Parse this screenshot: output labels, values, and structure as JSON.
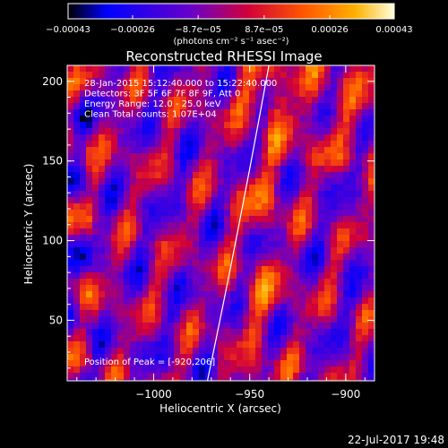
{
  "chart_data": {
    "type": "heatmap",
    "title": "Reconstructed RHESSI Image",
    "xlabel": "Heliocentric X (arcsec)",
    "ylabel": "Heliocentric Y (arcsec)",
    "xlim": [
      -1045,
      -885
    ],
    "ylim": [
      12,
      210
    ],
    "xticks": [
      -1000,
      -950,
      -900
    ],
    "xtick_labels": [
      "−1000",
      "−950",
      "−900"
    ],
    "yticks": [
      50,
      100,
      150,
      200
    ],
    "ytick_labels": [
      "50",
      "100",
      "150",
      "200"
    ],
    "colorbar": {
      "min": -0.00043,
      "max": 0.00043,
      "ticks": [
        -0.00043,
        -0.00026,
        -8.7e-05,
        8.7e-05,
        0.00026,
        0.00043
      ],
      "tick_labels": [
        "−0.00043",
        "−0.00026",
        "−8.7e−05",
        "8.7e−05",
        "0.00026",
        "0.00043"
      ],
      "units_text": "(photons cm⁻² s⁻¹ asec⁻²)",
      "palette": [
        "#000000",
        "#0000ff",
        "#7700cc",
        "#ff0000",
        "#ff9900",
        "#ffffcc"
      ]
    },
    "annotations": [
      "28-Jan-2015 15:12:40.000 to 15:22:40.000",
      "Detectors: 3F 5F 6F 7F 8F 9F, Att 0",
      "Energy Range: 12.0 - 25.0 keV",
      "Clean    Total counts: 1.07E+04"
    ],
    "peak_label": "Position of Peak = [-920,206]",
    "peak_position": [
      -920,
      206
    ],
    "limb_curve": [
      [
        -972,
        12
      ],
      [
        -955,
        110
      ],
      [
        -940,
        210
      ]
    ]
  },
  "timestamp": "22-Jul-2017 19:48"
}
